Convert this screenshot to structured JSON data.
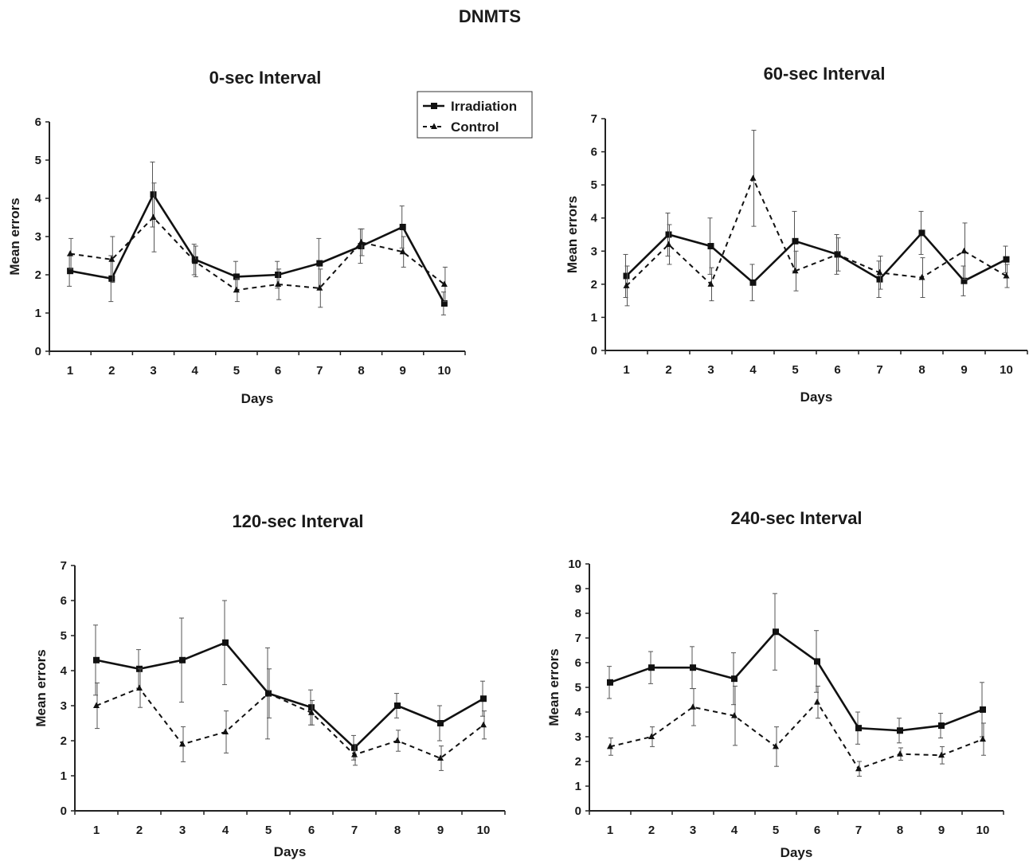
{
  "title": "DNMTS",
  "chart_data": [
    {
      "type": "line",
      "title": "0-sec Interval",
      "xlabel": "Days",
      "ylabel": "Mean errors",
      "x": [
        1,
        2,
        3,
        4,
        5,
        6,
        7,
        8,
        9,
        10
      ],
      "ylim": [
        0,
        6
      ],
      "yticks": [
        0,
        1,
        2,
        3,
        4,
        5,
        6
      ],
      "grid": false,
      "legend": "top-right",
      "series": [
        {
          "name": "Irradiation",
          "style": "solid",
          "marker": "square",
          "values": [
            2.1,
            1.9,
            4.1,
            2.4,
            1.95,
            2.0,
            2.3,
            2.75,
            3.25,
            1.25
          ],
          "err": [
            0.4,
            0.6,
            0.85,
            0.4,
            0.4,
            0.35,
            0.65,
            0.45,
            0.55,
            0.3
          ]
        },
        {
          "name": "Control",
          "style": "dashed",
          "marker": "triangle",
          "values": [
            2.55,
            2.4,
            3.5,
            2.35,
            1.6,
            1.75,
            1.65,
            2.85,
            2.6,
            1.75
          ],
          "err": [
            0.4,
            0.6,
            0.9,
            0.4,
            0.3,
            0.4,
            0.5,
            0.35,
            0.4,
            0.45
          ]
        }
      ]
    },
    {
      "type": "line",
      "title": "60-sec Interval",
      "xlabel": "Days",
      "ylabel": "Mean errors",
      "x": [
        1,
        2,
        3,
        4,
        5,
        6,
        7,
        8,
        9,
        10
      ],
      "ylim": [
        0,
        7
      ],
      "yticks": [
        0,
        1,
        2,
        3,
        4,
        5,
        6,
        7
      ],
      "grid": false,
      "series": [
        {
          "name": "Irradiation",
          "style": "solid",
          "marker": "square",
          "values": [
            2.25,
            3.5,
            3.15,
            2.05,
            3.3,
            2.9,
            2.15,
            3.55,
            2.1,
            2.75
          ],
          "err": [
            0.65,
            0.65,
            0.85,
            0.55,
            0.9,
            0.6,
            0.55,
            0.65,
            0.45,
            0.4
          ]
        },
        {
          "name": "Control",
          "style": "dashed",
          "marker": "triangle",
          "values": [
            1.95,
            3.2,
            2.0,
            5.2,
            2.4,
            2.9,
            2.35,
            2.2,
            3.0,
            2.25
          ],
          "err": [
            0.6,
            0.6,
            0.5,
            1.45,
            0.6,
            0.5,
            0.5,
            0.6,
            0.85,
            0.35
          ]
        }
      ]
    },
    {
      "type": "line",
      "title": "120-sec Interval",
      "xlabel": "Days",
      "ylabel": "Mean errors",
      "x": [
        1,
        2,
        3,
        4,
        5,
        6,
        7,
        8,
        9,
        10
      ],
      "ylim": [
        0,
        7
      ],
      "yticks": [
        0,
        1,
        2,
        3,
        4,
        5,
        6,
        7
      ],
      "grid": false,
      "series": [
        {
          "name": "Irradiation",
          "style": "solid",
          "marker": "square",
          "values": [
            4.3,
            4.05,
            4.3,
            4.8,
            3.35,
            2.95,
            1.8,
            3.0,
            2.5,
            3.2
          ],
          "err": [
            1.0,
            0.55,
            1.2,
            1.2,
            1.3,
            0.5,
            0.35,
            0.35,
            0.5,
            0.5
          ]
        },
        {
          "name": "Control",
          "style": "dashed",
          "marker": "triangle",
          "values": [
            3.0,
            3.5,
            1.9,
            2.25,
            3.35,
            2.8,
            1.6,
            2.0,
            1.5,
            2.45
          ],
          "err": [
            0.65,
            0.55,
            0.5,
            0.6,
            0.7,
            0.35,
            0.3,
            0.3,
            0.35,
            0.4
          ]
        }
      ]
    },
    {
      "type": "line",
      "title": "240-sec Interval",
      "xlabel": "Days",
      "ylabel": "Mean errors",
      "x": [
        1,
        2,
        3,
        4,
        5,
        6,
        7,
        8,
        9,
        10
      ],
      "ylim": [
        0,
        10
      ],
      "yticks": [
        0,
        1,
        2,
        3,
        4,
        5,
        6,
        7,
        8,
        9,
        10
      ],
      "grid": false,
      "series": [
        {
          "name": "Irradiation",
          "style": "solid",
          "marker": "square",
          "values": [
            5.2,
            5.8,
            5.8,
            5.35,
            7.25,
            6.05,
            3.35,
            3.25,
            3.45,
            4.1
          ],
          "err": [
            0.65,
            0.65,
            0.85,
            1.05,
            1.55,
            1.25,
            0.65,
            0.5,
            0.5,
            1.1
          ]
        },
        {
          "name": "Control",
          "style": "dashed",
          "marker": "triangle",
          "values": [
            2.6,
            3.0,
            4.2,
            3.85,
            2.6,
            4.4,
            1.7,
            2.3,
            2.25,
            2.9
          ],
          "err": [
            0.35,
            0.4,
            0.75,
            1.2,
            0.8,
            0.65,
            0.3,
            0.25,
            0.35,
            0.65
          ]
        }
      ]
    }
  ]
}
